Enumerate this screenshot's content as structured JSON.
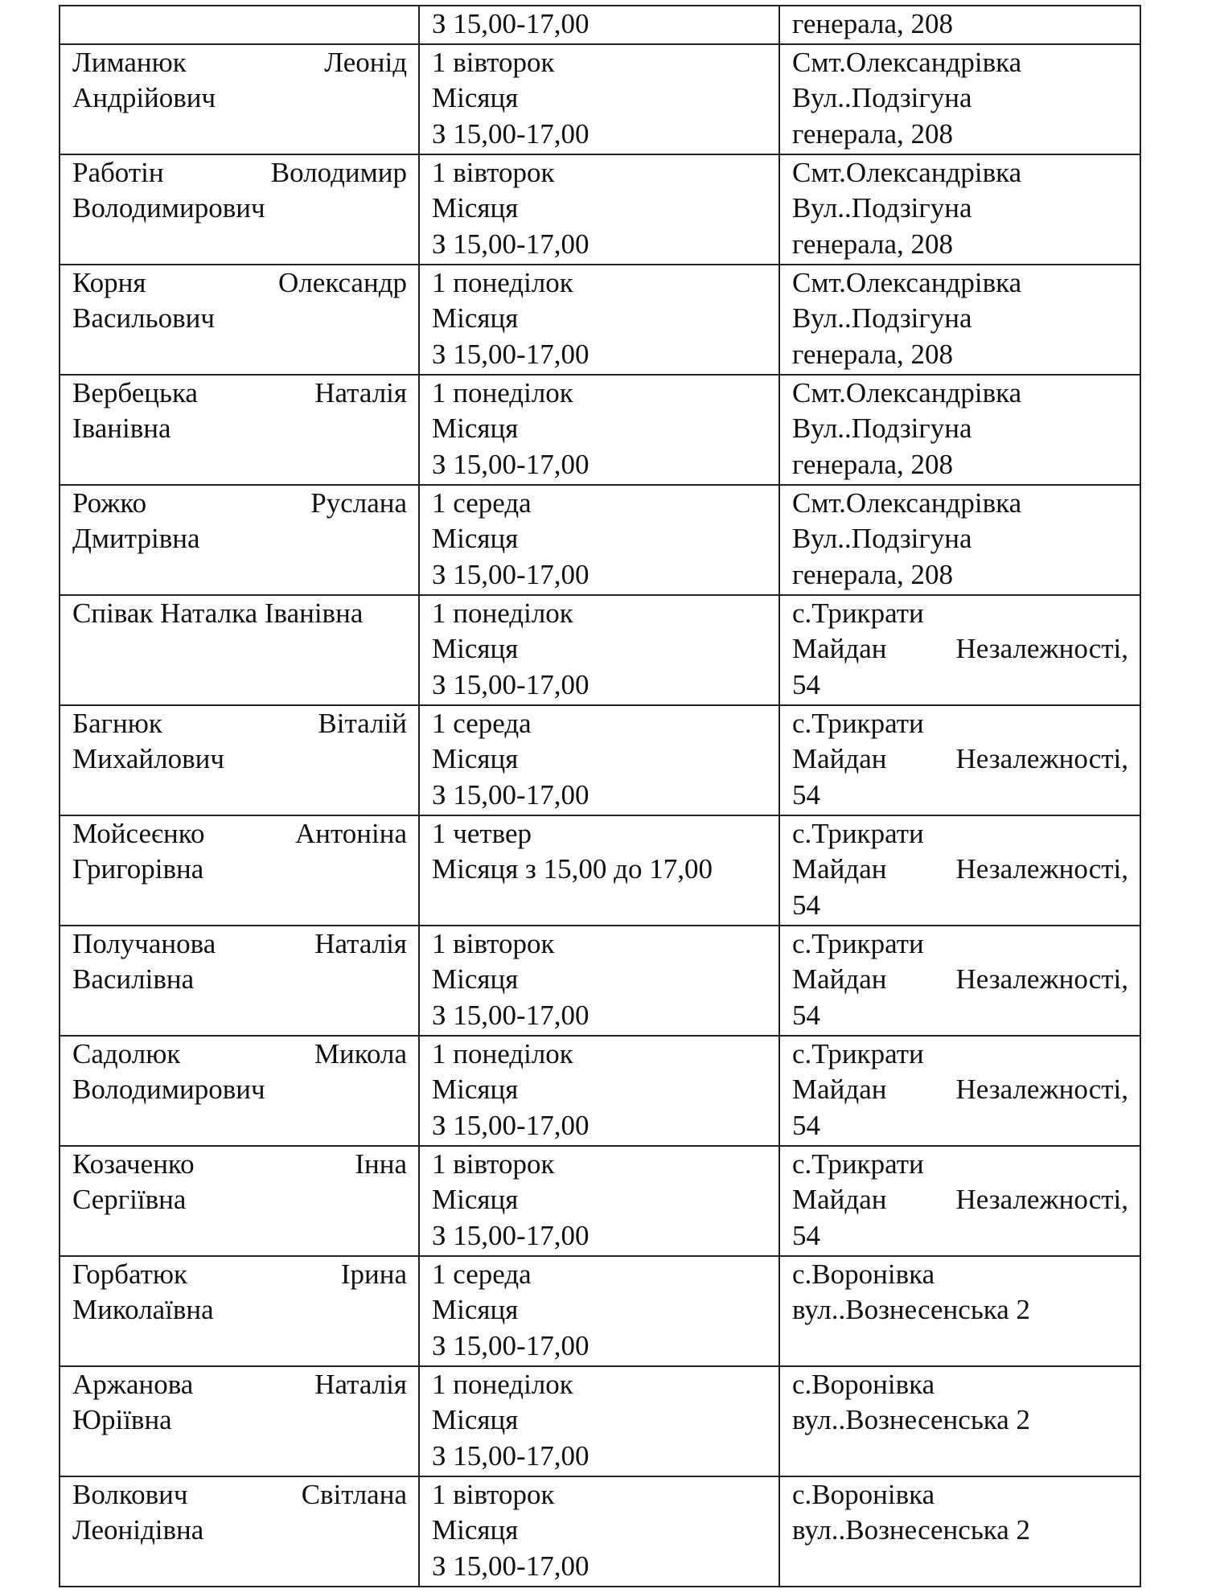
{
  "table": {
    "first_row": {
      "name": "",
      "schedule": "З 15,00-17,00",
      "address": "генерала, 208"
    },
    "rows": [
      {
        "name_first": "Лиманюк Леонід",
        "name_rest": "Андрійович",
        "schedule": [
          "1 вівторок",
          "Місяця",
          "З 15,00-17,00"
        ],
        "address": [
          "Смт.Олександрівка",
          "Вул..Подзігуна",
          "генерала, 208"
        ]
      },
      {
        "name_first": "Работін Володимир",
        "name_rest": "Володимирович",
        "schedule": [
          "1 вівторок",
          "Місяця",
          "З 15,00-17,00"
        ],
        "address": [
          "Смт.Олександрівка",
          "Вул..Подзігуна",
          "генерала, 208"
        ]
      },
      {
        "name_first": "Корня Олександр",
        "name_rest": "Васильович",
        "schedule": [
          "1 понеділок",
          "Місяця",
          "З 15,00-17,00"
        ],
        "address": [
          "Смт.Олександрівка",
          "Вул..Подзігуна",
          "генерала, 208"
        ]
      },
      {
        "name_first": "Вербецька Наталія",
        "name_rest": "Іванівна",
        "schedule": [
          "1 понеділок",
          "Місяця",
          "З 15,00-17,00"
        ],
        "address": [
          "Смт.Олександрівка",
          "Вул..Подзігуна",
          "генерала, 208"
        ]
      },
      {
        "name_first": "Рожко Руслана",
        "name_rest": "Дмитрівна",
        "schedule": [
          "1 середа",
          "Місяця",
          "З 15,00-17,00"
        ],
        "address": [
          "Смт.Олександрівка",
          "Вул..Подзігуна",
          "генерала, 208"
        ]
      },
      {
        "name_first": "Співак Наталка Іванівна",
        "name_rest": "",
        "schedule": [
          "1 понеділок",
          "Місяця",
          "З 15,00-17,00"
        ],
        "address": [
          "с.Трикрати",
          "Майдан Незалежності,",
          "54"
        ]
      },
      {
        "name_first": "Багнюк Віталій",
        "name_rest": "Михайлович",
        "schedule": [
          "1 середа",
          "Місяця",
          "З 15,00-17,00"
        ],
        "address": [
          "с.Трикрати",
          "Майдан Незалежності,",
          "54"
        ]
      },
      {
        "name_first": "Мойсеєнко Антоніна",
        "name_rest": "Григорівна",
        "schedule": [
          "1 четвер",
          "Місяця з 15,00 до 17,00",
          ""
        ],
        "address": [
          "с.Трикрати",
          "Майдан Незалежності,",
          "54"
        ]
      },
      {
        "name_first": "Получанова Наталія",
        "name_rest": "Василівна",
        "schedule": [
          "1 вівторок",
          "Місяця",
          "З 15,00-17,00"
        ],
        "address": [
          "с.Трикрати",
          "Майдан Незалежності,",
          "54"
        ]
      },
      {
        "name_first": "Садолюк Микола",
        "name_rest": "Володимирович",
        "schedule": [
          "1 понеділок",
          "Місяця",
          "З 15,00-17,00"
        ],
        "address": [
          "с.Трикрати",
          "Майдан Незалежності,",
          "54"
        ]
      },
      {
        "name_first": "Козаченко Інна",
        "name_rest": "Сергіївна",
        "schedule": [
          "1 вівторок",
          "Місяця",
          "З 15,00-17,00"
        ],
        "address": [
          "с.Трикрати",
          "Майдан Незалежності,",
          "54"
        ]
      },
      {
        "name_first": "Горбатюк Ірина",
        "name_rest": "Миколаївна",
        "schedule": [
          "1 середа",
          "Місяця",
          "З 15,00-17,00"
        ],
        "address": [
          "с.Воронівка",
          "вул..Вознесенська 2",
          ""
        ]
      },
      {
        "name_first": "Аржанова Наталія",
        "name_rest": "Юріївна",
        "schedule": [
          "1 понеділок",
          "Місяця",
          "З 15,00-17,00"
        ],
        "address": [
          "с.Воронівка",
          "вул..Вознесенська 2",
          ""
        ]
      },
      {
        "name_first": "Волкович Світлана",
        "name_rest": "Леонідівна",
        "schedule": [
          "1 вівторок",
          "Місяця",
          "З 15,00-17,00"
        ],
        "address": [
          "с.Воронівка",
          "вул..Вознесенська 2",
          ""
        ]
      }
    ]
  }
}
